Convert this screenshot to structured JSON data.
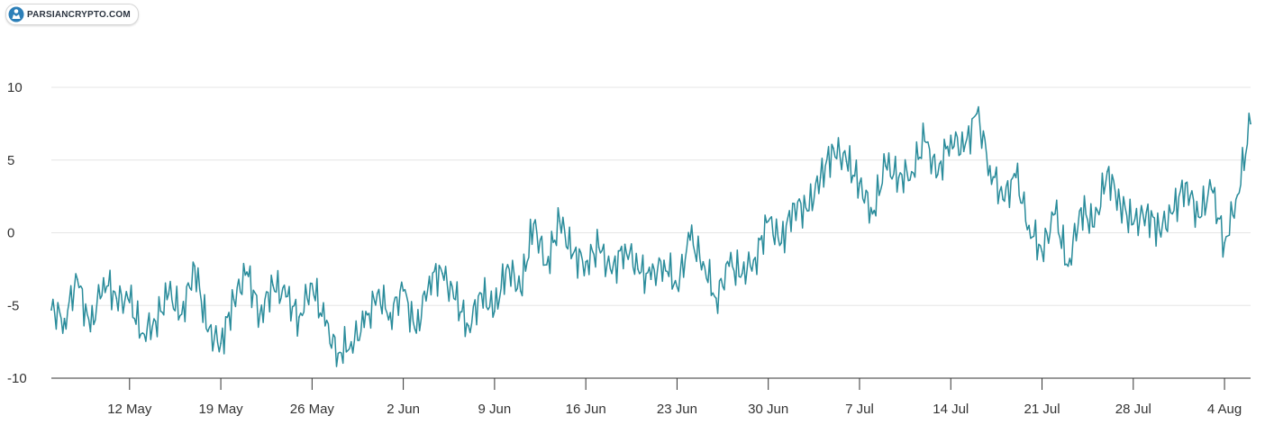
{
  "brand": {
    "name": "PARSIANCRYPTO.COM",
    "icon": "parsiancrypto-logo-icon"
  },
  "colors": {
    "line": "#2a8c9b",
    "grid": "#e6e6e6",
    "axis": "#333333"
  },
  "chart_data": {
    "type": "line",
    "title": "",
    "xlabel": "",
    "ylabel": "",
    "x_ticks": [
      "12 May",
      "19 May",
      "26 May",
      "2 Jun",
      "9 Jun",
      "16 Jun",
      "23 Jun",
      "30 Jun",
      "7 Jul",
      "14 Jul",
      "21 Jul",
      "28 Jul",
      "4 Aug"
    ],
    "y_ticks": [
      10,
      5,
      0,
      -5,
      -10
    ],
    "xlim": [
      "2019-05-06",
      "2019-08-06"
    ],
    "ylim": [
      -10,
      10
    ],
    "grid": true,
    "legend": "none",
    "series": [
      {
        "values": [
          [
            "2019-05-06",
            -5.3
          ],
          [
            "2019-05-07",
            -5.9
          ],
          [
            "2019-05-08",
            -3.2
          ],
          [
            "2019-05-09",
            -6.8
          ],
          [
            "2019-05-10",
            -3.1
          ],
          [
            "2019-05-11",
            -4.5
          ],
          [
            "2019-05-12",
            -4.8
          ],
          [
            "2019-05-13",
            -6.9
          ],
          [
            "2019-05-14",
            -6.1
          ],
          [
            "2019-05-15",
            -4.2
          ],
          [
            "2019-05-16",
            -5.6
          ],
          [
            "2019-05-17",
            -2.3
          ],
          [
            "2019-05-18",
            -6.8
          ],
          [
            "2019-05-19",
            -7.6
          ],
          [
            "2019-05-20",
            -4.6
          ],
          [
            "2019-05-21",
            -2.7
          ],
          [
            "2019-05-22",
            -5.6
          ],
          [
            "2019-05-23",
            -3.6
          ],
          [
            "2019-05-24",
            -4.4
          ],
          [
            "2019-05-25",
            -5.8
          ],
          [
            "2019-05-26",
            -3.5
          ],
          [
            "2019-05-27",
            -6.4
          ],
          [
            "2019-05-28",
            -8.3
          ],
          [
            "2019-05-29",
            -7.5
          ],
          [
            "2019-05-30",
            -6.5
          ],
          [
            "2019-05-31",
            -4.2
          ],
          [
            "2019-06-01",
            -5.5
          ],
          [
            "2019-06-02",
            -4.0
          ],
          [
            "2019-06-03",
            -6.9
          ],
          [
            "2019-06-04",
            -3.0
          ],
          [
            "2019-06-05",
            -2.8
          ],
          [
            "2019-06-06",
            -4.6
          ],
          [
            "2019-06-07",
            -6.4
          ],
          [
            "2019-06-08",
            -4.2
          ],
          [
            "2019-06-09",
            -5.4
          ],
          [
            "2019-06-10",
            -2.2
          ],
          [
            "2019-06-11",
            -4.0
          ],
          [
            "2019-06-12",
            0.6
          ],
          [
            "2019-06-13",
            -2.2
          ],
          [
            "2019-06-14",
            0.8
          ],
          [
            "2019-06-15",
            -1.5
          ],
          [
            "2019-06-16",
            -2.0
          ],
          [
            "2019-06-17",
            -1.0
          ],
          [
            "2019-06-18",
            -2.8
          ],
          [
            "2019-06-19",
            -0.8
          ],
          [
            "2019-06-20",
            -2.5
          ],
          [
            "2019-06-21",
            -3.2
          ],
          [
            "2019-06-22",
            -1.9
          ],
          [
            "2019-06-23",
            -3.7
          ],
          [
            "2019-06-24",
            -0.5
          ],
          [
            "2019-06-25",
            -2.0
          ],
          [
            "2019-06-26",
            -4.5
          ],
          [
            "2019-06-27",
            -2.3
          ],
          [
            "2019-06-28",
            -2.8
          ],
          [
            "2019-06-29",
            -1.7
          ],
          [
            "2019-06-30",
            0.8
          ],
          [
            "2019-07-01",
            -0.7
          ],
          [
            "2019-07-02",
            2.0
          ],
          [
            "2019-07-03",
            1.5
          ],
          [
            "2019-07-04",
            3.8
          ],
          [
            "2019-07-05",
            5.8
          ],
          [
            "2019-07-06",
            4.9
          ],
          [
            "2019-07-07",
            3.4
          ],
          [
            "2019-07-08",
            1.3
          ],
          [
            "2019-07-09",
            4.6
          ],
          [
            "2019-07-10",
            3.8
          ],
          [
            "2019-07-11",
            4.2
          ],
          [
            "2019-07-12",
            6.3
          ],
          [
            "2019-07-13",
            4.0
          ],
          [
            "2019-07-14",
            6.7
          ],
          [
            "2019-07-15",
            5.6
          ],
          [
            "2019-07-16",
            8.2
          ],
          [
            "2019-07-17",
            4.6
          ],
          [
            "2019-07-18",
            2.3
          ],
          [
            "2019-07-19",
            3.8
          ],
          [
            "2019-07-20",
            0.5
          ],
          [
            "2019-07-21",
            -1.3
          ],
          [
            "2019-07-22",
            1.3
          ],
          [
            "2019-07-23",
            -2.3
          ],
          [
            "2019-07-24",
            1.7
          ],
          [
            "2019-07-25",
            0.4
          ],
          [
            "2019-07-26",
            4.2
          ],
          [
            "2019-07-27",
            2.0
          ],
          [
            "2019-07-28",
            0.6
          ],
          [
            "2019-07-29",
            1.4
          ],
          [
            "2019-07-30",
            0.2
          ],
          [
            "2019-07-31",
            1.3
          ],
          [
            "2019-08-01",
            3.4
          ],
          [
            "2019-08-02",
            1.1
          ],
          [
            "2019-08-03",
            3.0
          ],
          [
            "2019-08-04",
            -0.7
          ],
          [
            "2019-08-05",
            2.6
          ],
          [
            "2019-08-06",
            7.5
          ]
        ]
      }
    ]
  }
}
